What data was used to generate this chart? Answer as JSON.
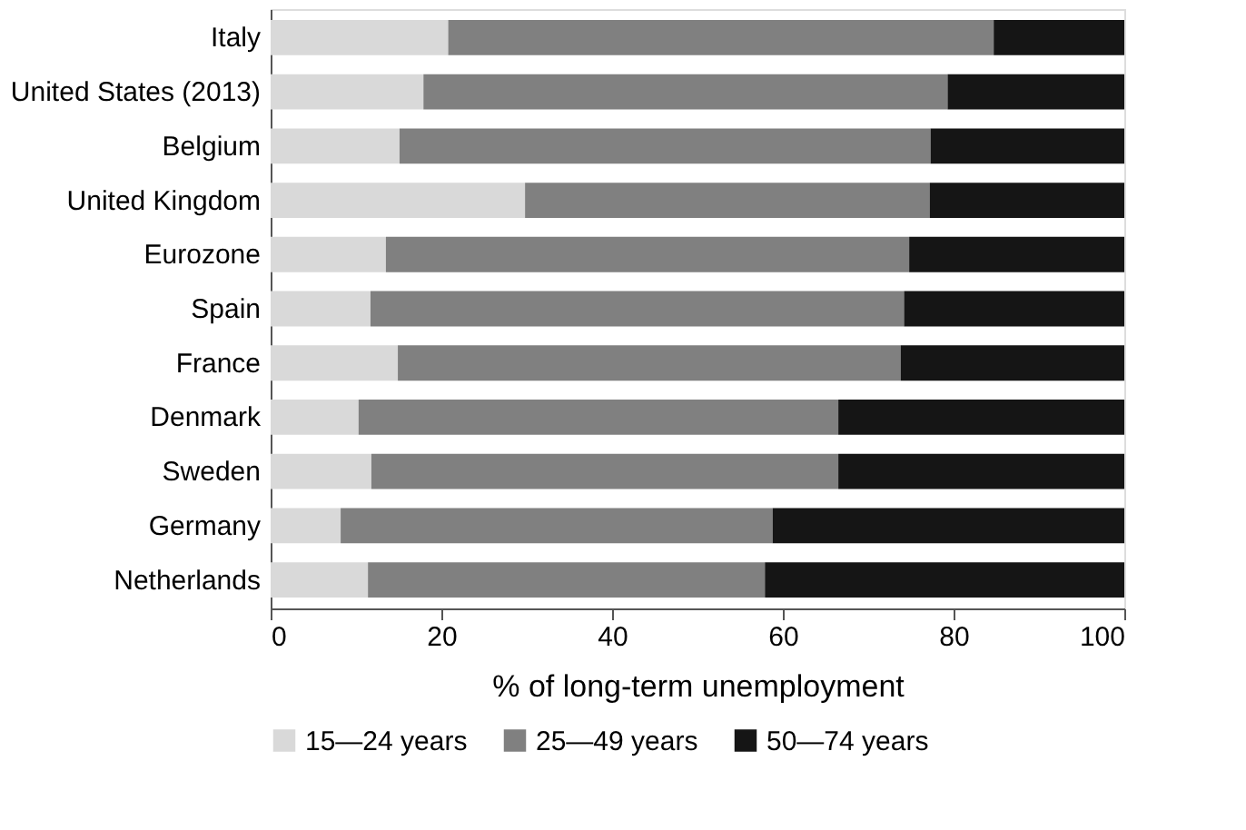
{
  "chart_data": {
    "type": "bar",
    "orientation": "horizontal",
    "stacked": true,
    "categories": [
      "Italy",
      "United States (2013)",
      "Belgium",
      "United Kingdom",
      "Eurozone",
      "Spain",
      "France",
      "Denmark",
      "Sweden",
      "Germany",
      "Netherlands"
    ],
    "series": [
      {
        "name": "15—24 years",
        "color": "#d9d9d9",
        "values": [
          20.8,
          17.9,
          15.1,
          29.8,
          13.5,
          11.7,
          14.9,
          10.3,
          11.8,
          8.2,
          11.4
        ]
      },
      {
        "name": "25—49 years",
        "color": "#808080",
        "values": [
          63.9,
          61.4,
          62.2,
          47.4,
          61.3,
          62.5,
          58.9,
          56.2,
          54.7,
          50.6,
          46.5
        ]
      },
      {
        "name": "50—74 years",
        "color": "#151515",
        "values": [
          15.3,
          20.7,
          22.7,
          22.8,
          25.2,
          25.8,
          26.2,
          33.5,
          33.5,
          41.2,
          42.1
        ]
      }
    ],
    "xlabel": "% of long-term unemployment",
    "xlim": [
      0,
      100
    ],
    "xticks": [
      0,
      20,
      40,
      60,
      80,
      100
    ],
    "grid": false,
    "legend": "bottom"
  }
}
